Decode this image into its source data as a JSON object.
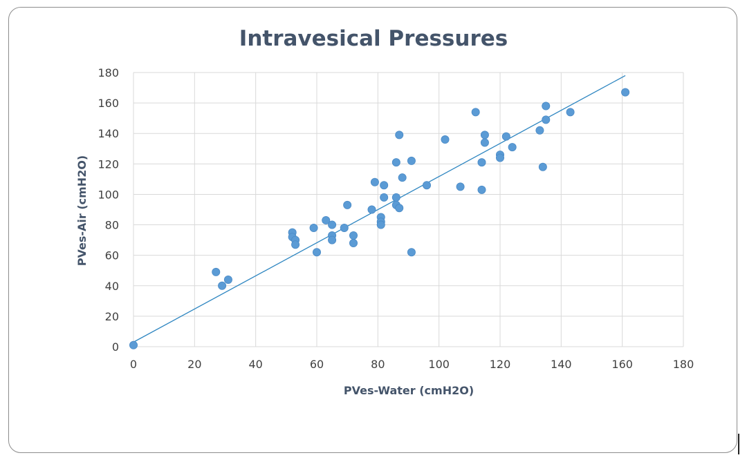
{
  "chart_data": {
    "type": "scatter",
    "title": "Intravesical Pressures",
    "xlabel": "PVes-Water (cmH2O)",
    "ylabel": "PVes-Air (cmH2O)",
    "xlim": [
      0,
      180
    ],
    "ylim": [
      0,
      180
    ],
    "x_ticks": [
      "0",
      "20",
      "40",
      "60",
      "80",
      "100",
      "120",
      "140",
      "160",
      "180"
    ],
    "y_ticks": [
      "0",
      "20",
      "40",
      "60",
      "80",
      "100",
      "120",
      "140",
      "160",
      "180"
    ],
    "grid": true,
    "legend": false,
    "colors": {
      "points": "#5b9bd5",
      "trendline": "#2e86c1",
      "grid": "#d9d9d9",
      "title": "#44546a"
    },
    "trendline": {
      "type": "linear",
      "x": [
        0,
        161
      ],
      "y": [
        3,
        178
      ]
    },
    "series": [
      {
        "points": [
          [
            0,
            1
          ],
          [
            27,
            49
          ],
          [
            29,
            40
          ],
          [
            31,
            44
          ],
          [
            52,
            75
          ],
          [
            52,
            72
          ],
          [
            53,
            70
          ],
          [
            53,
            67
          ],
          [
            59,
            78
          ],
          [
            60,
            62
          ],
          [
            63,
            83
          ],
          [
            65,
            80
          ],
          [
            65,
            73
          ],
          [
            65,
            70
          ],
          [
            69,
            78
          ],
          [
            70,
            93
          ],
          [
            72,
            73
          ],
          [
            72,
            68
          ],
          [
            78,
            90
          ],
          [
            79,
            108
          ],
          [
            81,
            85
          ],
          [
            81,
            82
          ],
          [
            81,
            80
          ],
          [
            82,
            106
          ],
          [
            82,
            98
          ],
          [
            86,
            121
          ],
          [
            86,
            98
          ],
          [
            86,
            93
          ],
          [
            87,
            91
          ],
          [
            87,
            139
          ],
          [
            88,
            111
          ],
          [
            91,
            122
          ],
          [
            91,
            62
          ],
          [
            96,
            106
          ],
          [
            102,
            136
          ],
          [
            107,
            105
          ],
          [
            112,
            154
          ],
          [
            114,
            121
          ],
          [
            114,
            103
          ],
          [
            115,
            139
          ],
          [
            115,
            134
          ],
          [
            120,
            126
          ],
          [
            120,
            124
          ],
          [
            122,
            138
          ],
          [
            124,
            131
          ],
          [
            133,
            142
          ],
          [
            134,
            118
          ],
          [
            135,
            158
          ],
          [
            135,
            149
          ],
          [
            143,
            154
          ],
          [
            161,
            167
          ]
        ]
      }
    ]
  }
}
